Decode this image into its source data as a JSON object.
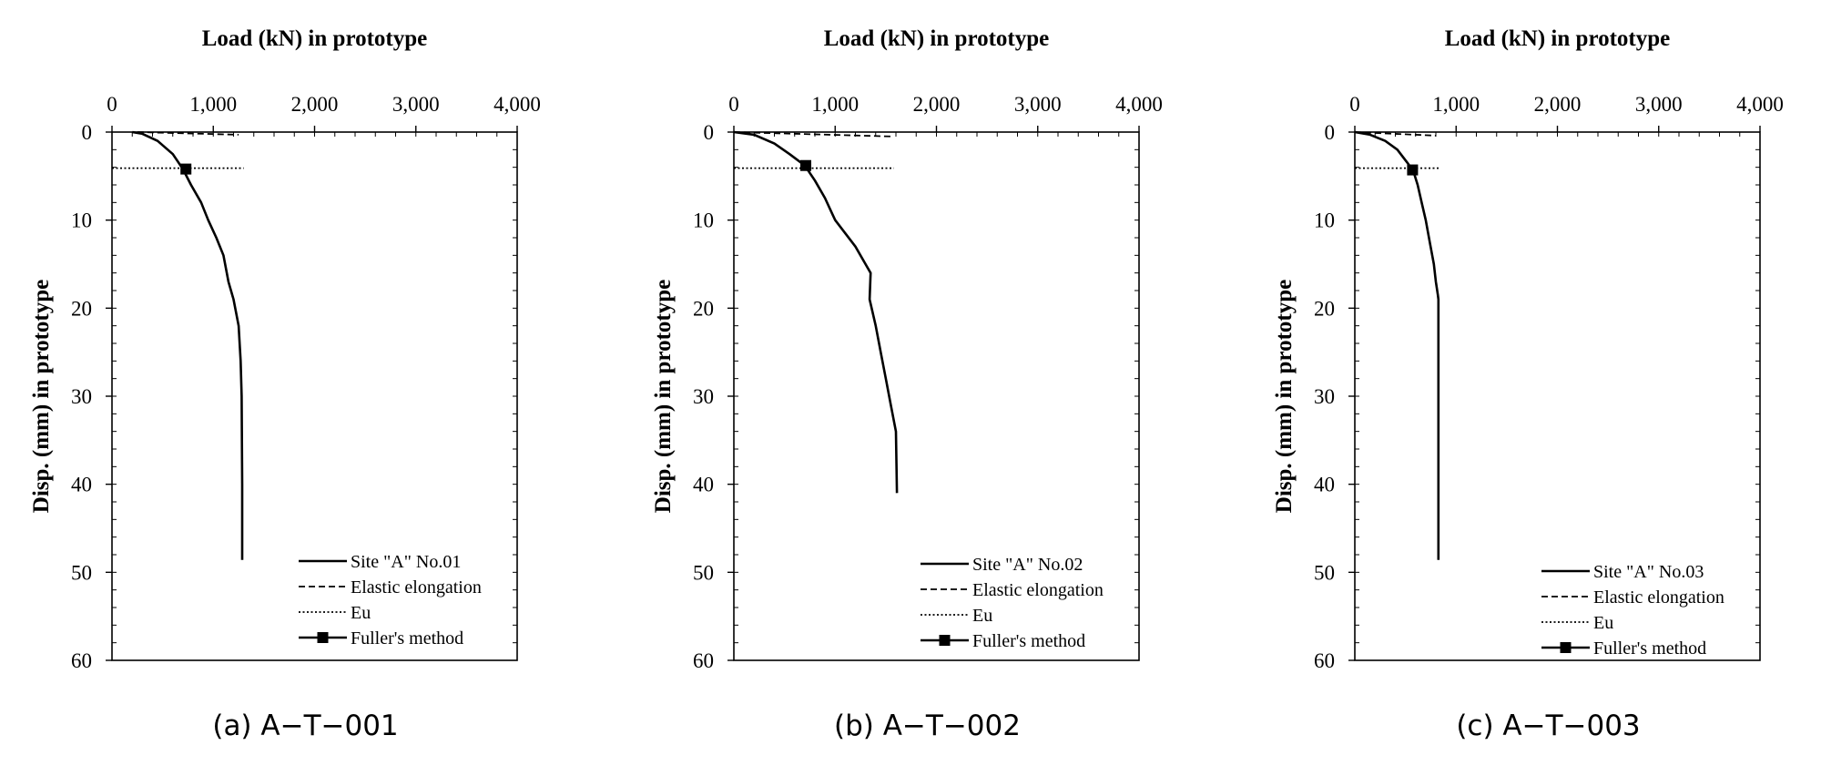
{
  "chart_data": [
    {
      "type": "line",
      "panel": "a",
      "caption": "(a) A−T−001",
      "title": "Load (kN) in prototype",
      "xlabel": "Load (kN) in prototype",
      "ylabel": "Disp. (mm) in prototype",
      "xlim": [
        0,
        4000
      ],
      "ylim": [
        0,
        60
      ],
      "x_ticks": [
        "0",
        "1,000",
        "2,000",
        "3,000",
        "4,000"
      ],
      "y_ticks": [
        "0",
        "10",
        "20",
        "30",
        "40",
        "50",
        "60"
      ],
      "y_inverted": true,
      "legend_position": "bottom-right",
      "series": [
        {
          "name": "Site \"A\" No.01",
          "style": "solid",
          "marker": "none",
          "x": [
            200,
            300,
            450,
            600,
            700,
            780,
            880,
            950,
            1030,
            1100,
            1150,
            1200,
            1250,
            1270,
            1280,
            1285,
            1285
          ],
          "y": [
            0,
            0.2,
            1,
            2.5,
            4.2,
            6,
            8,
            10,
            12,
            14,
            17,
            19,
            22,
            26,
            30,
            40,
            48.6
          ]
        },
        {
          "name": "Elastic elongation",
          "style": "dashed",
          "marker": "none",
          "x": [
            250,
            1250
          ],
          "y": [
            0,
            0.3
          ]
        },
        {
          "name": "Eu",
          "style": "dotted",
          "marker": "none",
          "x": [
            0,
            1300
          ],
          "y": [
            4.1,
            4.1
          ]
        },
        {
          "name": "Fuller's method",
          "style": "solid",
          "marker": "square",
          "x": [
            730
          ],
          "y": [
            4.2
          ]
        }
      ]
    },
    {
      "type": "line",
      "panel": "b",
      "caption": "(b) A−T−002",
      "title": "Load (kN) in prototype",
      "xlabel": "Load (kN) in prototype",
      "ylabel": "Disp. (mm) in prototype",
      "xlim": [
        0,
        4000
      ],
      "ylim": [
        0,
        60
      ],
      "x_ticks": [
        "0",
        "1,000",
        "2,000",
        "3,000",
        "4,000"
      ],
      "y_ticks": [
        "0",
        "10",
        "20",
        "30",
        "40",
        "50",
        "60"
      ],
      "y_inverted": true,
      "legend_position": "bottom-right",
      "series": [
        {
          "name": "Site \"A\" No.02",
          "style": "solid",
          "marker": "none",
          "x": [
            0,
            200,
            400,
            550,
            700,
            800,
            900,
            980,
            1000,
            1100,
            1200,
            1300,
            1350,
            1340,
            1400,
            1450,
            1500,
            1550,
            1600,
            1610
          ],
          "y": [
            0,
            0.3,
            1.3,
            2.5,
            3.8,
            5.5,
            7.5,
            9.5,
            10,
            11.5,
            13,
            15,
            16,
            19,
            22,
            25,
            28,
            31,
            34,
            41
          ]
        },
        {
          "name": "Elastic elongation",
          "style": "dashed",
          "marker": "none",
          "x": [
            0,
            1550
          ],
          "y": [
            0,
            0.5
          ]
        },
        {
          "name": "Eu",
          "style": "dotted",
          "marker": "none",
          "x": [
            0,
            1580
          ],
          "y": [
            4.1,
            4.1
          ]
        },
        {
          "name": "Fuller's method",
          "style": "solid",
          "marker": "square",
          "x": [
            710
          ],
          "y": [
            3.8
          ]
        }
      ]
    },
    {
      "type": "line",
      "panel": "c",
      "caption": "(c) A−T−003",
      "title": "Load (kN) in prototype",
      "xlabel": "Load (kN) in prototype",
      "ylabel": "Disp. (mm) in prototype",
      "xlim": [
        0,
        4000
      ],
      "ylim": [
        0,
        60
      ],
      "x_ticks": [
        "0",
        "1,000",
        "2,000",
        "3,000",
        "4,000"
      ],
      "y_ticks": [
        "0",
        "10",
        "20",
        "30",
        "40",
        "50",
        "60"
      ],
      "y_inverted": true,
      "legend_position": "bottom-right",
      "series": [
        {
          "name": "Site \"A\" No.03",
          "style": "solid",
          "marker": "none",
          "x": [
            0,
            150,
            300,
            420,
            520,
            580,
            620,
            660,
            700,
            740,
            780,
            800,
            820,
            825,
            825
          ],
          "y": [
            0,
            0.3,
            1,
            2,
            3.5,
            4.5,
            6,
            8,
            10,
            12.5,
            15,
            17,
            18.5,
            19,
            48.6
          ]
        },
        {
          "name": "Elastic elongation",
          "style": "dashed",
          "marker": "none",
          "x": [
            0,
            800
          ],
          "y": [
            0,
            0.4
          ]
        },
        {
          "name": "Eu",
          "style": "dotted",
          "marker": "none",
          "x": [
            0,
            830
          ],
          "y": [
            4.1,
            4.1
          ]
        },
        {
          "name": "Fuller's method",
          "style": "solid",
          "marker": "square",
          "x": [
            570
          ],
          "y": [
            4.3
          ]
        }
      ]
    }
  ]
}
